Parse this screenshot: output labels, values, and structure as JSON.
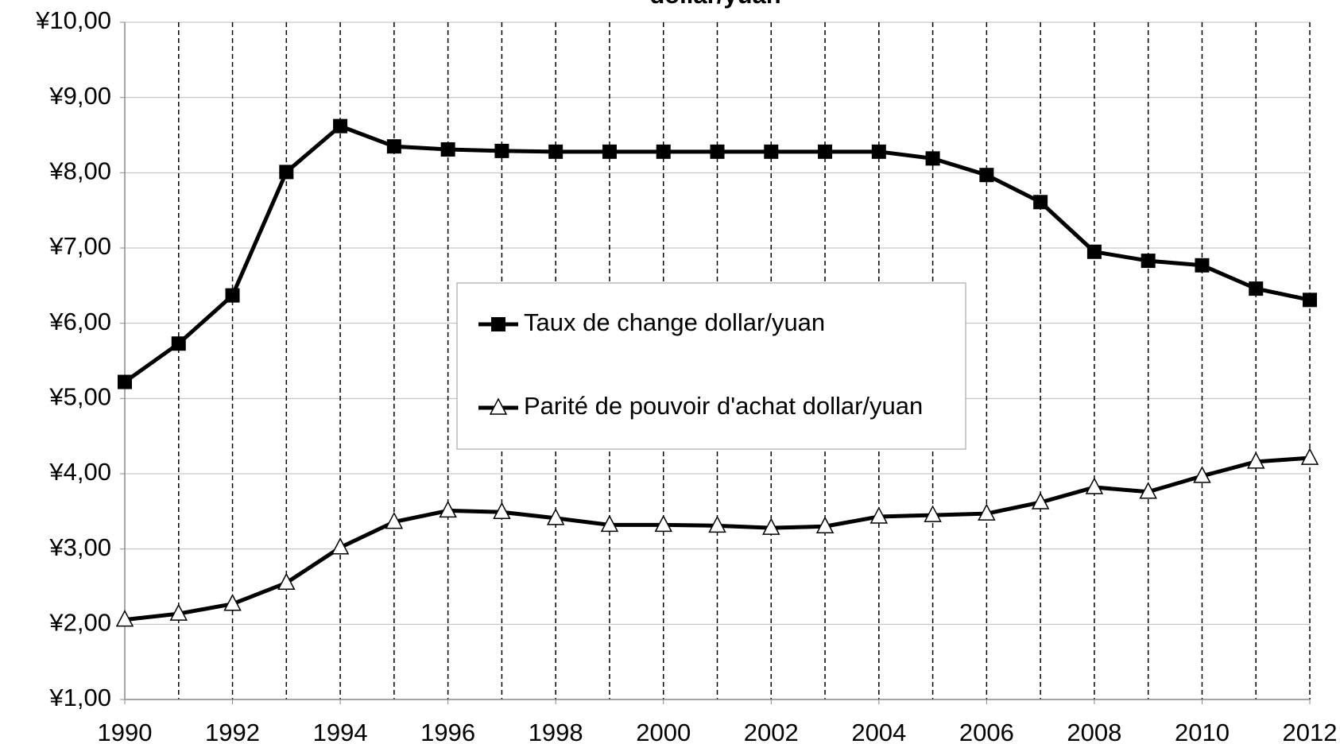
{
  "chart_data": {
    "type": "line",
    "title": "dollar/yuan",
    "x": [
      1990,
      1991,
      1992,
      1993,
      1994,
      1995,
      1996,
      1997,
      1998,
      1999,
      2000,
      2001,
      2002,
      2003,
      2004,
      2005,
      2006,
      2007,
      2008,
      2009,
      2010,
      2011,
      2012
    ],
    "series": [
      {
        "name": "Taux de change dollar/yuan",
        "color": "#000000",
        "marker": "square",
        "values": [
          5.22,
          5.73,
          6.37,
          8.01,
          8.62,
          8.35,
          8.31,
          8.29,
          8.28,
          8.28,
          8.28,
          8.28,
          8.28,
          8.28,
          8.28,
          8.19,
          7.97,
          7.61,
          6.95,
          6.83,
          6.77,
          6.46,
          6.31
        ]
      },
      {
        "name": "Parité de pouvoir d'achat dollar/yuan",
        "color": "#000000",
        "marker": "triangle",
        "values": [
          2.06,
          2.14,
          2.27,
          2.55,
          3.02,
          3.36,
          3.51,
          3.49,
          3.41,
          3.32,
          3.32,
          3.31,
          3.28,
          3.3,
          3.43,
          3.45,
          3.47,
          3.62,
          3.82,
          3.76,
          3.97,
          4.16,
          4.21
        ]
      }
    ],
    "xlim": [
      1990,
      2012
    ],
    "xticks": [
      1990,
      1992,
      1994,
      1996,
      1998,
      2000,
      2002,
      2004,
      2006,
      2008,
      2010,
      2012
    ],
    "ylim": [
      1,
      10
    ],
    "yticks": [
      {
        "value": 1,
        "label": "¥1,00"
      },
      {
        "value": 2,
        "label": "¥2,00"
      },
      {
        "value": 3,
        "label": "¥3,00"
      },
      {
        "value": 4,
        "label": "¥4,00"
      },
      {
        "value": 5,
        "label": "¥5,00"
      },
      {
        "value": 6,
        "label": "¥6,00"
      },
      {
        "value": 7,
        "label": "¥7,00"
      },
      {
        "value": 8,
        "label": "¥8,00"
      },
      {
        "value": 9,
        "label": "¥9,00"
      },
      {
        "value": 10,
        "label": "¥10,00"
      }
    ],
    "grid": true,
    "legend": "center"
  }
}
